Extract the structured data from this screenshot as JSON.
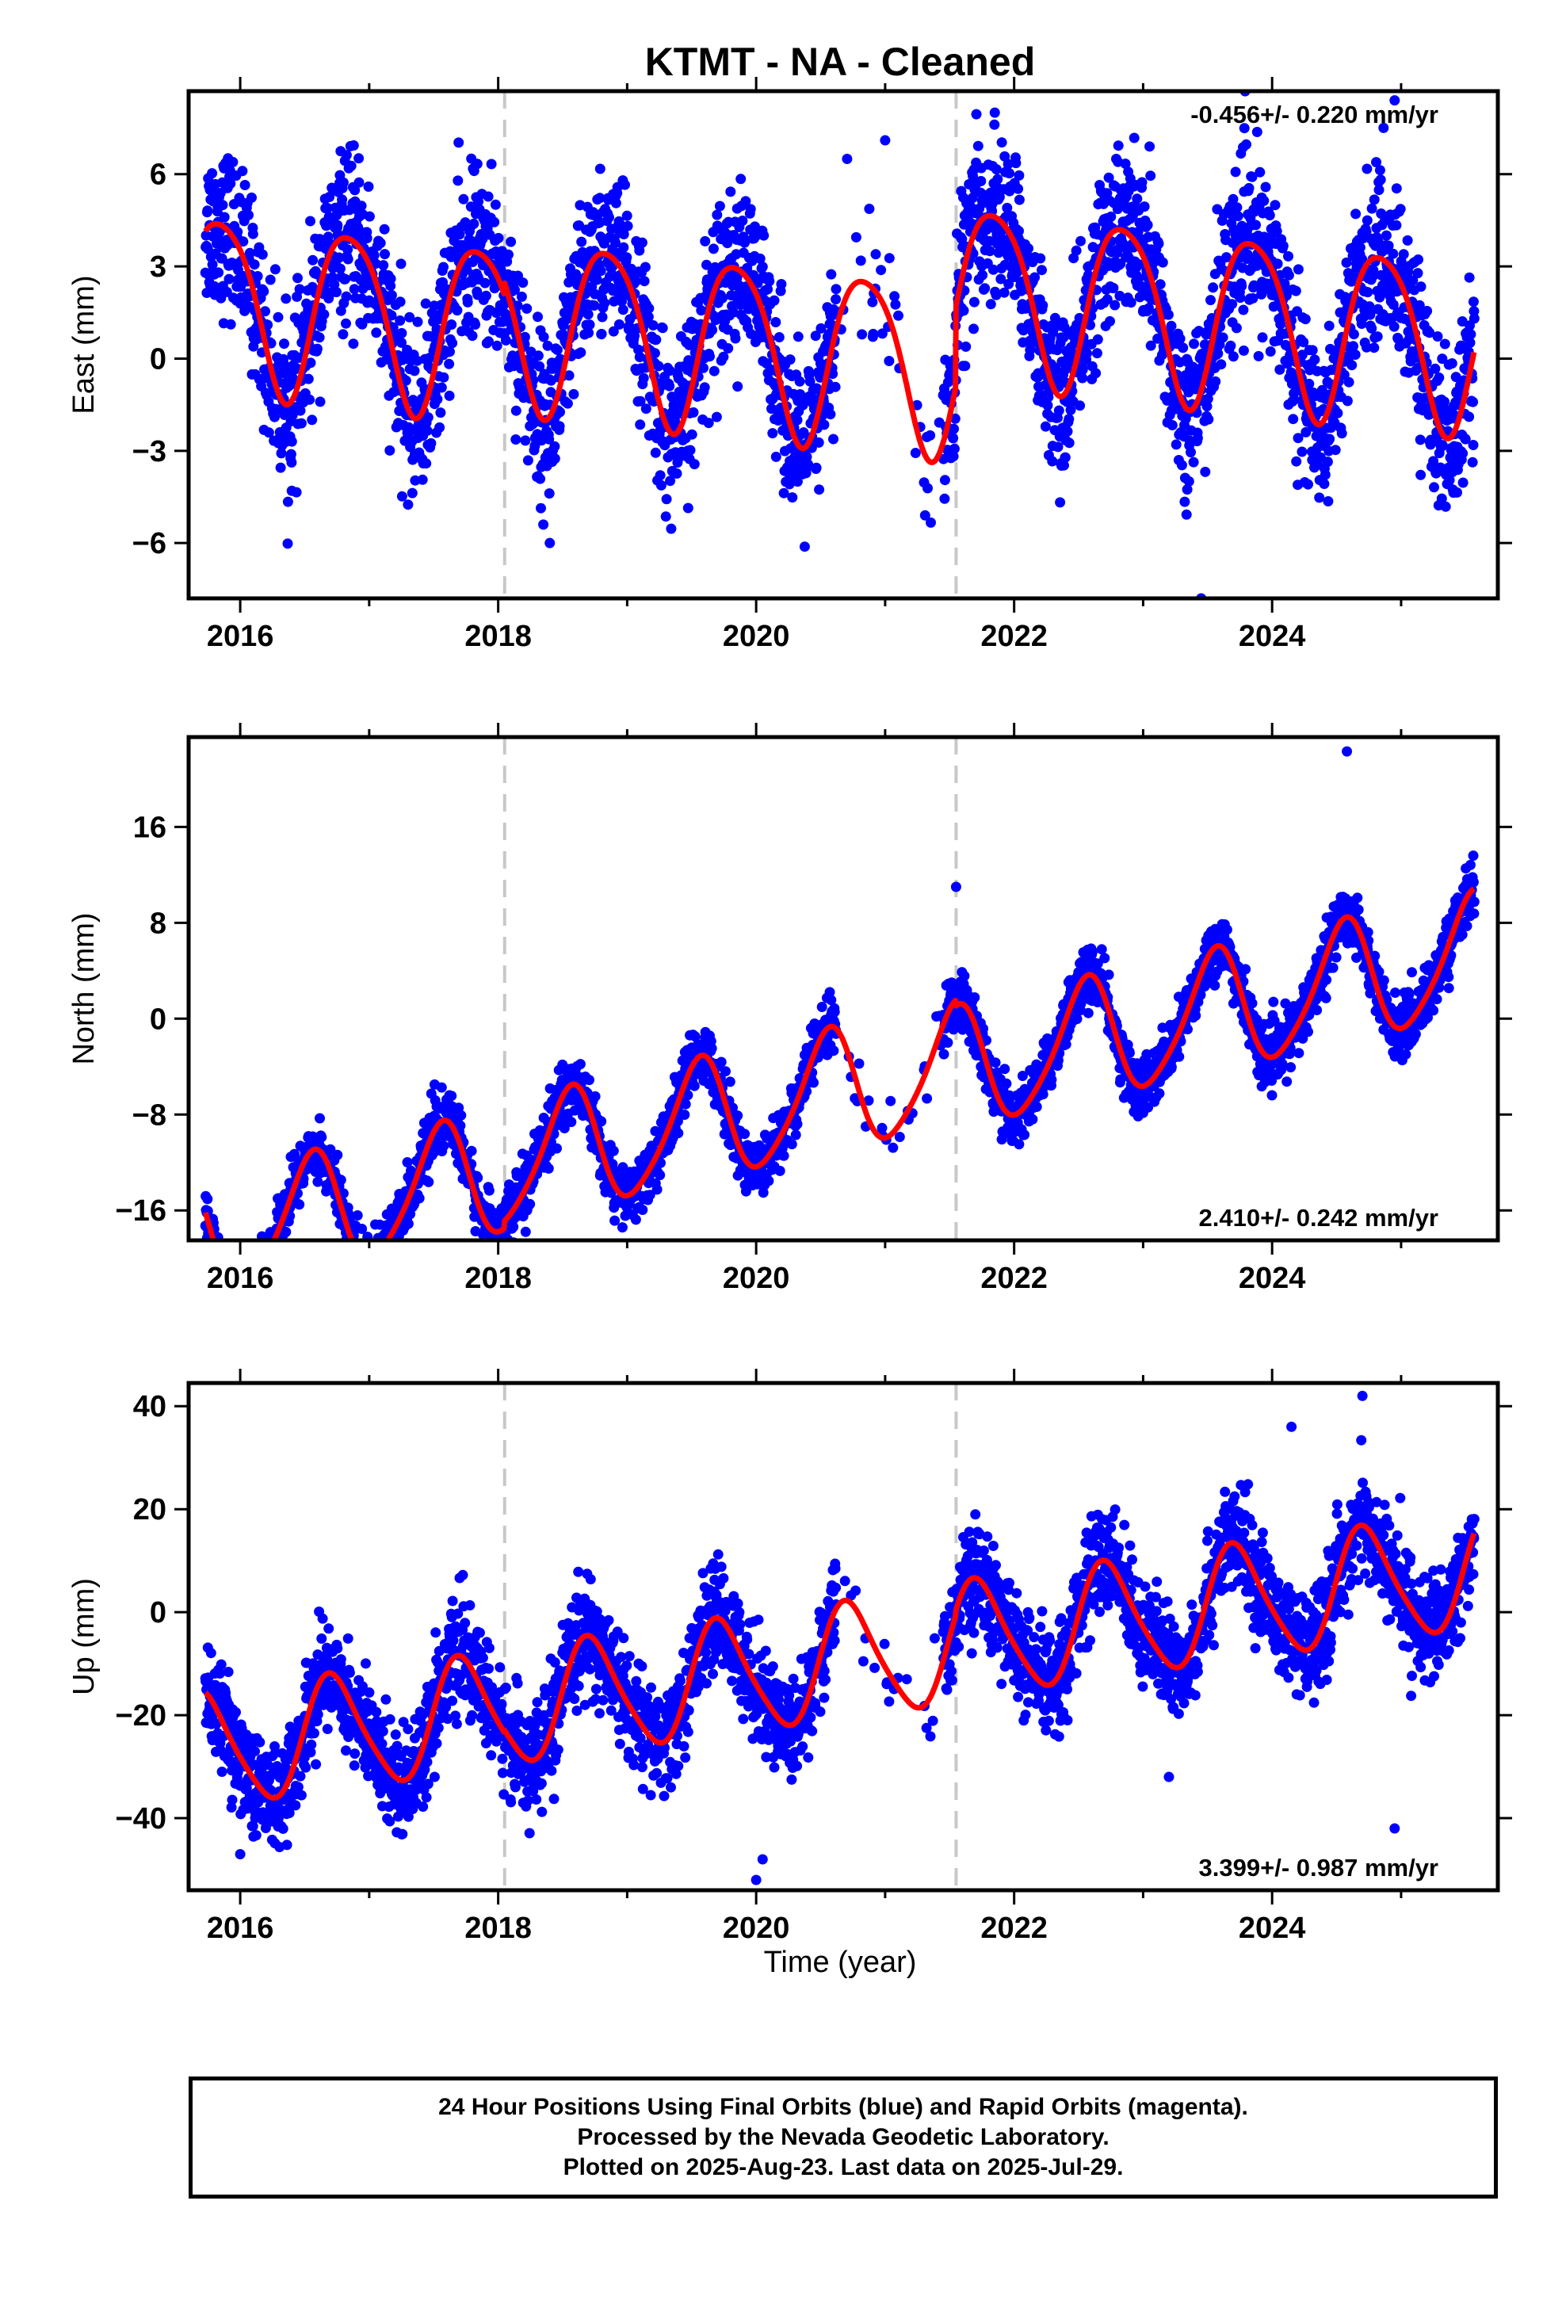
{
  "title": "KTMT  - NA - Cleaned",
  "xlabel": "Time (year)",
  "footer": [
    "24 Hour Positions Using Final Orbits (blue) and Rapid Orbits (magenta).",
    "Processed by the Nevada Geodetic Laboratory.",
    "Plotted on 2025-Aug-23. Last data on 2025-Jul-29."
  ],
  "colors": {
    "points": "#0000ff",
    "fit": "#ff0000",
    "event_line": "#c8c8c8",
    "frame": "#000000"
  },
  "chart_data": [
    {
      "type": "scatter",
      "name": "east",
      "ylabel": "East (mm)",
      "rate_label": "-0.456+/- 0.220 mm/yr",
      "rate_position": "top-right",
      "xlim": [
        2015.6,
        2025.75
      ],
      "ylim": [
        -7.8,
        8.7
      ],
      "xticks": [
        2016,
        2018,
        2020,
        2022,
        2024
      ],
      "yticks": [
        -6,
        -3,
        0,
        3,
        6
      ],
      "ytick_labels": [
        "−6",
        "−3",
        "0",
        "3",
        "6"
      ],
      "event_lines": [
        2018.05,
        2021.55
      ],
      "series": [
        {
          "type": "scatter",
          "description_key": "daily positions",
          "data_spans": [
            [
              2015.73,
              2020.62
            ],
            [
              2020.62,
              2021.45
            ],
            [
              2021.45,
              2025.57
            ]
          ],
          "span_density": [
            1.0,
            0.08,
            1.0
          ],
          "noise_sd": 1.3,
          "outliers": [
            [
              2021.0,
              7.1
            ],
            [
              2021.85,
              8.0
            ],
            [
              2023.05,
              6.9
            ],
            [
              2024.95,
              8.4
            ],
            [
              2023.45,
              -7.8
            ],
            [
              2018.4,
              -6.0
            ],
            [
              2016.4,
              -4.3
            ]
          ]
        },
        {
          "type": "line",
          "description_key": "model fit",
          "linear_rate": -0.456,
          "annual_amp": 2.8,
          "annual_peak": 0.85,
          "offset": 0.05,
          "jumps": [
            [
              2018.05,
              0.4
            ],
            [
              2021.55,
              2.6
            ]
          ]
        }
      ]
    },
    {
      "type": "scatter",
      "name": "north",
      "ylabel": "North (mm)",
      "rate_label": "2.410+/- 0.242 mm/yr",
      "rate_position": "bottom-right",
      "xlim": [
        2015.6,
        2025.75
      ],
      "ylim": [
        -18.5,
        23.5
      ],
      "xticks": [
        2016,
        2018,
        2020,
        2022,
        2024
      ],
      "yticks": [
        -16,
        -8,
        0,
        8,
        16
      ],
      "ytick_labels": [
        "−16",
        "−8",
        "0",
        "8",
        "16"
      ],
      "event_lines": [
        2018.05,
        2021.55
      ],
      "series": [
        {
          "type": "scatter",
          "description_key": "daily positions",
          "data_spans": [
            [
              2015.73,
              2020.62
            ],
            [
              2020.62,
              2021.45
            ],
            [
              2021.45,
              2025.57
            ]
          ],
          "span_density": [
            1.0,
            0.08,
            1.0
          ],
          "noise_sd": 1.2,
          "outliers": [
            [
              2024.58,
              22.3
            ],
            [
              2020.85,
              -9.0
            ],
            [
              2019.95,
              -13.0
            ],
            [
              2021.55,
              11.0
            ],
            [
              2022.15,
              -6.0
            ]
          ]
        },
        {
          "type": "line",
          "description_key": "model fit",
          "linear_rate": 2.41,
          "annual_amp": 5.0,
          "annual_peak": 0.55,
          "offset": -8.2,
          "jumps": [
            [
              2018.05,
              0.6
            ],
            [
              2021.55,
              -0.5
            ]
          ]
        }
      ]
    },
    {
      "type": "scatter",
      "name": "up",
      "ylabel": "Up (mm)",
      "rate_label": "3.399+/- 0.987 mm/yr",
      "rate_position": "bottom-right",
      "xlim": [
        2015.6,
        2025.75
      ],
      "ylim": [
        -54,
        44.5
      ],
      "xticks": [
        2016,
        2018,
        2020,
        2022,
        2024
      ],
      "yticks": [
        -40,
        -20,
        0,
        20,
        40
      ],
      "ytick_labels": [
        "−40",
        "−20",
        "0",
        "20",
        "40"
      ],
      "event_lines": [
        2018.05,
        2021.55
      ],
      "series": [
        {
          "type": "scatter",
          "description_key": "daily positions",
          "data_spans": [
            [
              2015.73,
              2020.62
            ],
            [
              2020.62,
              2021.45
            ],
            [
              2021.45,
              2025.57
            ]
          ],
          "span_density": [
            1.0,
            0.08,
            1.0
          ],
          "noise_sd": 5.0,
          "outliers": [
            [
              2020.0,
              -52.0
            ],
            [
              2020.05,
              -48.0
            ],
            [
              2016.0,
              -47.0
            ],
            [
              2024.7,
              42.0
            ],
            [
              2024.95,
              -42.0
            ],
            [
              2023.2,
              -32.0
            ],
            [
              2024.15,
              36.0
            ]
          ]
        },
        {
          "type": "line",
          "description_key": "model fit",
          "linear_rate": 3.399,
          "annual_amp": 11.0,
          "annual_peak": 0.72,
          "offset": -12.5,
          "jumps": [
            [
              2018.05,
              0.5
            ],
            [
              2021.55,
              1.0
            ]
          ]
        }
      ]
    }
  ]
}
